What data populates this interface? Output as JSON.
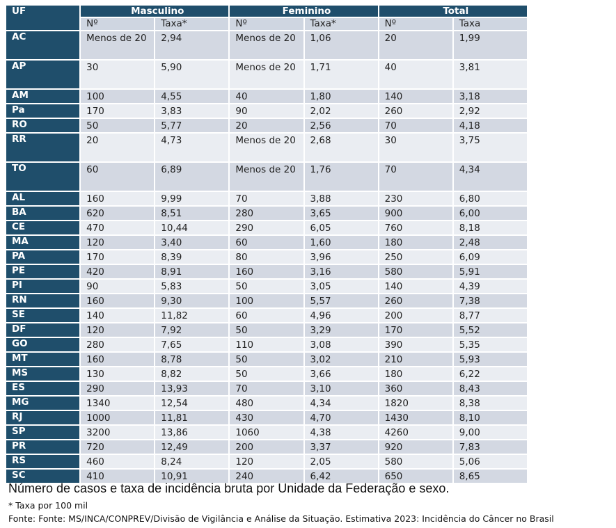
{
  "table": {
    "uf_header": "UF",
    "groups": [
      "Masculino",
      "Feminino",
      "Total"
    ],
    "subheaders": [
      "Nº",
      "Taxa*",
      "Nº",
      "Taxa*",
      "Nº",
      "Taxa"
    ],
    "rows": [
      {
        "uf": "AC",
        "tall": true,
        "cells": [
          "Menos de 20",
          "2,94",
          "Menos de 20",
          "1,06",
          "20",
          "1,99"
        ]
      },
      {
        "uf": "AP",
        "tall": true,
        "cells": [
          "30",
          "5,90",
          "Menos de 20",
          "1,71",
          "40",
          "3,81"
        ]
      },
      {
        "uf": "AM",
        "tall": false,
        "cells": [
          "100",
          "4,55",
          "40",
          "1,80",
          "140",
          "3,18"
        ]
      },
      {
        "uf": "Pa",
        "tall": false,
        "cells": [
          "170",
          "3,83",
          "90",
          "2,02",
          "260",
          "2,92"
        ]
      },
      {
        "uf": "RO",
        "tall": false,
        "cells": [
          "50",
          "5,77",
          "20",
          "2,56",
          "70",
          "4,18"
        ]
      },
      {
        "uf": "RR",
        "tall": true,
        "cells": [
          "20",
          "4,73",
          "Menos de 20",
          "2,68",
          "30",
          "3,75"
        ]
      },
      {
        "uf": "TO",
        "tall": true,
        "cells": [
          "60",
          "6,89",
          "Menos de 20",
          "1,76",
          "70",
          "4,34"
        ]
      },
      {
        "uf": "AL",
        "tall": false,
        "cells": [
          "160",
          "9,99",
          "70",
          "3,88",
          "230",
          "6,80"
        ]
      },
      {
        "uf": "BA",
        "tall": false,
        "cells": [
          "620",
          "8,51",
          "280",
          "3,65",
          "900",
          "6,00"
        ]
      },
      {
        "uf": "CE",
        "tall": false,
        "cells": [
          "470",
          "10,44",
          "290",
          "6,05",
          "760",
          "8,18"
        ]
      },
      {
        "uf": "MA",
        "tall": false,
        "cells": [
          "120",
          "3,40",
          "60",
          "1,60",
          "180",
          "2,48"
        ]
      },
      {
        "uf": "PA",
        "tall": false,
        "cells": [
          "170",
          "8,39",
          "80",
          "3,96",
          "250",
          "6,09"
        ]
      },
      {
        "uf": "PE",
        "tall": false,
        "cells": [
          "420",
          "8,91",
          "160",
          "3,16",
          "580",
          "5,91"
        ]
      },
      {
        "uf": "PI",
        "tall": false,
        "cells": [
          "90",
          "5,83",
          "50",
          "3,05",
          "140",
          "4,39"
        ]
      },
      {
        "uf": "RN",
        "tall": false,
        "cells": [
          "160",
          "9,30",
          "100",
          "5,57",
          "260",
          "7,38"
        ]
      },
      {
        "uf": "SE",
        "tall": false,
        "cells": [
          "140",
          "11,82",
          "60",
          "4,96",
          "200",
          "8,77"
        ]
      },
      {
        "uf": "DF",
        "tall": false,
        "cells": [
          "120",
          "7,92",
          "50",
          "3,29",
          "170",
          "5,52"
        ]
      },
      {
        "uf": "GO",
        "tall": false,
        "cells": [
          "280",
          "7,65",
          "110",
          "3,08",
          "390",
          "5,35"
        ]
      },
      {
        "uf": "MT",
        "tall": false,
        "cells": [
          "160",
          "8,78",
          "50",
          "3,02",
          "210",
          "5,93"
        ]
      },
      {
        "uf": "MS",
        "tall": false,
        "cells": [
          "130",
          "8,82",
          "50",
          "3,66",
          "180",
          "6,22"
        ]
      },
      {
        "uf": "ES",
        "tall": false,
        "cells": [
          "290",
          "13,93",
          "70",
          "3,10",
          "360",
          "8,43"
        ]
      },
      {
        "uf": "MG",
        "tall": false,
        "cells": [
          "1340",
          "12,54",
          "480",
          "4,34",
          "1820",
          "8,38"
        ]
      },
      {
        "uf": "RJ",
        "tall": false,
        "cells": [
          "1000",
          "11,81",
          "430",
          "4,70",
          "1430",
          "8,10"
        ]
      },
      {
        "uf": "SP",
        "tall": false,
        "cells": [
          "3200",
          "13,86",
          "1060",
          "4,38",
          "4260",
          "9,00"
        ]
      },
      {
        "uf": "PR",
        "tall": false,
        "cells": [
          "720",
          "12,49",
          "200",
          "3,37",
          "920",
          "7,83"
        ]
      },
      {
        "uf": "RS",
        "tall": false,
        "cells": [
          "460",
          "8,24",
          "120",
          "2,05",
          "580",
          "5,06"
        ]
      },
      {
        "uf": "SC",
        "tall": false,
        "cells": [
          "410",
          "10,91",
          "240",
          "6,42",
          "650",
          "8,65"
        ]
      }
    ]
  },
  "caption": "Número de casos e taxa de incidência bruta por Unidade da Federação e sexo.",
  "note": "* Taxa por 100 mil",
  "source": "Fonte: Fonte: MS/INCA/CONPREV/Divisão de Vigilância e Análise da Situação. Estimativa 2023: Incidência do Câncer no Brasil",
  "colors": {
    "header_dark": "#1f4e6b",
    "row_dark": "#d3d8e2",
    "row_light": "#eaedf2",
    "subheader": "#cfd6e1"
  }
}
